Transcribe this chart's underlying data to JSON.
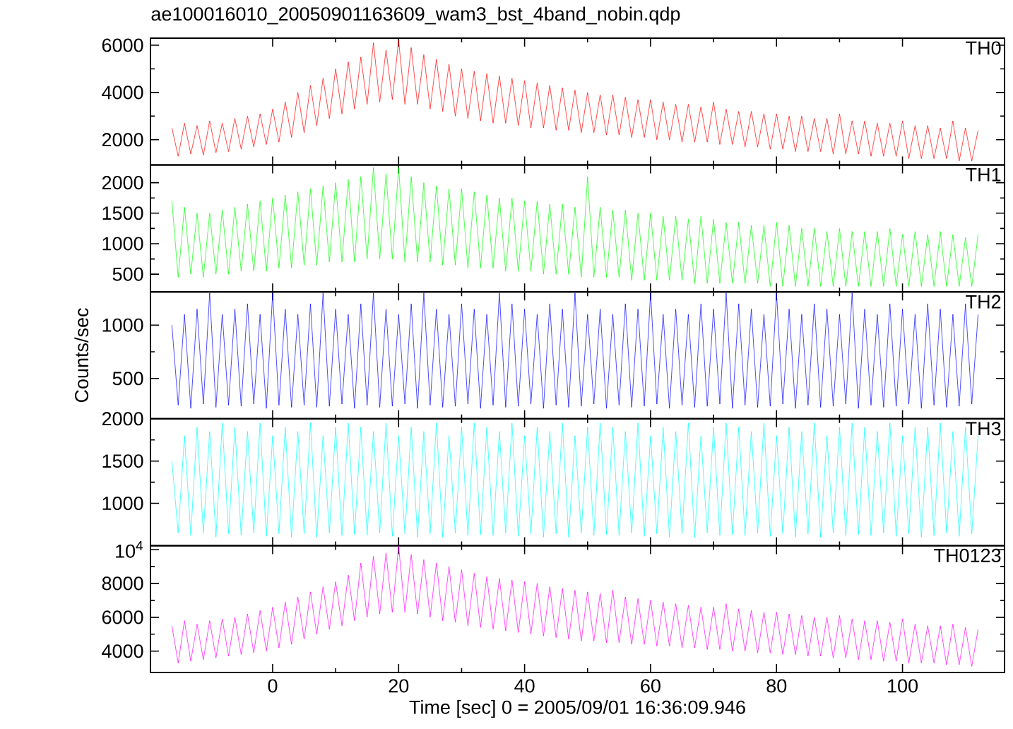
{
  "chart_data": [
    {
      "type": "line",
      "title": "ae100016010_20050901163609_wam3_bst_4band_nobin.qdp",
      "tick_labels": "y",
      "xlim": [
        -19.4,
        116.2
      ],
      "xticks": [
        0,
        20,
        40,
        60,
        80,
        100
      ],
      "ylim": [
        930,
        6300
      ],
      "yticks": [
        2000,
        4000,
        6000
      ],
      "x": [
        -16,
        -15,
        -14,
        -13,
        -12,
        -11,
        -10,
        -9,
        -8,
        -7,
        -6,
        -5,
        -4,
        -3,
        -2,
        -1,
        0,
        1,
        2,
        3,
        4,
        5,
        6,
        7,
        8,
        9,
        10,
        11,
        12,
        13,
        14,
        15,
        16,
        17,
        18,
        19,
        20,
        21,
        22,
        23,
        24,
        25,
        26,
        27,
        28,
        29,
        30,
        31,
        32,
        33,
        34,
        35,
        36,
        37,
        38,
        39,
        40,
        41,
        42,
        43,
        44,
        45,
        46,
        47,
        48,
        49,
        50,
        51,
        52,
        53,
        54,
        55,
        56,
        57,
        58,
        59,
        60,
        61,
        62,
        63,
        64,
        65,
        66,
        67,
        68,
        69,
        70,
        71,
        72,
        73,
        74,
        75,
        76,
        77,
        78,
        79,
        80,
        81,
        82,
        83,
        84,
        85,
        86,
        87,
        88,
        89,
        90,
        91,
        92,
        93,
        94,
        95,
        96,
        97,
        98,
        99,
        100,
        101,
        102,
        103,
        104,
        105,
        106,
        107,
        108,
        109,
        110,
        111,
        112
      ],
      "series": [
        {
          "name": "TH0",
          "color": "#ff0000",
          "values": [
            2500,
            1300,
            2700,
            1400,
            2600,
            1350,
            2800,
            1450,
            2700,
            1500,
            2900,
            1600,
            3000,
            1700,
            3100,
            1800,
            3300,
            1900,
            3600,
            2100,
            4000,
            2300,
            4300,
            2600,
            4600,
            2900,
            5000,
            3100,
            5300,
            3300,
            5500,
            3500,
            6100,
            3600,
            5800,
            3700,
            6200,
            3500,
            5900,
            3500,
            5600,
            3300,
            5400,
            3200,
            5200,
            3000,
            5000,
            2900,
            4900,
            2800,
            4800,
            2700,
            4700,
            2700,
            4600,
            2600,
            4500,
            2500,
            4400,
            2500,
            4300,
            2400,
            4200,
            2400,
            4100,
            2300,
            4000,
            2300,
            3900,
            2200,
            3900,
            2200,
            3800,
            2100,
            3700,
            2100,
            3700,
            2000,
            3600,
            2000,
            3500,
            1900,
            3500,
            1900,
            3400,
            1900,
            3600,
            1800,
            3300,
            1800,
            3200,
            1700,
            3200,
            1700,
            3100,
            1600,
            3100,
            1600,
            3000,
            1500,
            3000,
            1500,
            2900,
            1500,
            2900,
            1400,
            3100,
            1400,
            2800,
            1400,
            2800,
            1300,
            2700,
            1300,
            2700,
            1300,
            2800,
            1200,
            2600,
            1200,
            2600,
            1200,
            2500,
            1200,
            2800,
            1100,
            2500,
            1100,
            2400
          ]
        }
      ]
    },
    {
      "type": "line",
      "tick_labels": "y",
      "xlim": [
        -19.4,
        116.2
      ],
      "xticks": [
        0,
        20,
        40,
        60,
        80,
        100
      ],
      "ylim": [
        210,
        2290
      ],
      "yticks": [
        500,
        1000,
        1500,
        2000
      ],
      "x": [
        -16,
        -15,
        -14,
        -13,
        -12,
        -11,
        -10,
        -9,
        -8,
        -7,
        -6,
        -5,
        -4,
        -3,
        -2,
        -1,
        0,
        1,
        2,
        3,
        4,
        5,
        6,
        7,
        8,
        9,
        10,
        11,
        12,
        13,
        14,
        15,
        16,
        17,
        18,
        19,
        20,
        21,
        22,
        23,
        24,
        25,
        26,
        27,
        28,
        29,
        30,
        31,
        32,
        33,
        34,
        35,
        36,
        37,
        38,
        39,
        40,
        41,
        42,
        43,
        44,
        45,
        46,
        47,
        48,
        49,
        50,
        51,
        52,
        53,
        54,
        55,
        56,
        57,
        58,
        59,
        60,
        61,
        62,
        63,
        64,
        65,
        66,
        67,
        68,
        69,
        70,
        71,
        72,
        73,
        74,
        75,
        76,
        77,
        78,
        79,
        80,
        81,
        82,
        83,
        84,
        85,
        86,
        87,
        88,
        89,
        90,
        91,
        92,
        93,
        94,
        95,
        96,
        97,
        98,
        99,
        100,
        101,
        102,
        103,
        104,
        105,
        106,
        107,
        108,
        109,
        110,
        111,
        112
      ],
      "series": [
        {
          "name": "TH1",
          "color": "#00ff00",
          "values": [
            1700,
            450,
            1600,
            500,
            1500,
            450,
            1500,
            500,
            1550,
            500,
            1600,
            550,
            1650,
            550,
            1700,
            550,
            1750,
            600,
            1800,
            600,
            1850,
            650,
            1900,
            650,
            1950,
            700,
            2000,
            700,
            2050,
            700,
            2100,
            750,
            2250,
            750,
            2150,
            750,
            2250,
            700,
            2100,
            700,
            2000,
            700,
            1950,
            650,
            1900,
            650,
            1900,
            600,
            1850,
            600,
            1800,
            600,
            1750,
            550,
            1750,
            550,
            1700,
            550,
            1700,
            500,
            1650,
            500,
            1650,
            500,
            1600,
            450,
            2100,
            450,
            1600,
            450,
            1550,
            450,
            1550,
            400,
            1500,
            400,
            1500,
            400,
            1450,
            400,
            1450,
            400,
            1400,
            350,
            1450,
            350,
            1400,
            350,
            1350,
            350,
            1350,
            350,
            1300,
            350,
            1300,
            300,
            1350,
            300,
            1300,
            300,
            1250,
            300,
            1250,
            300,
            1200,
            300,
            1250,
            300,
            1200,
            300,
            1200,
            300,
            1200,
            300,
            1250,
            300,
            1150,
            300,
            1200,
            300,
            1150,
            300,
            1200,
            300,
            1150,
            300,
            1100,
            300,
            1150
          ]
        }
      ]
    },
    {
      "type": "line",
      "tick_labels": "y",
      "ylabel": "Counts/sec",
      "xlim": [
        -19.4,
        116.2
      ],
      "xticks": [
        0,
        20,
        40,
        60,
        80,
        100
      ],
      "ylim": [
        123,
        1311
      ],
      "yticks": [
        500,
        1000
      ],
      "x": [
        -16,
        -15,
        -14,
        -13,
        -12,
        -11,
        -10,
        -9,
        -8,
        -7,
        -6,
        -5,
        -4,
        -3,
        -2,
        -1,
        0,
        1,
        2,
        3,
        4,
        5,
        6,
        7,
        8,
        9,
        10,
        11,
        12,
        13,
        14,
        15,
        16,
        17,
        18,
        19,
        20,
        21,
        22,
        23,
        24,
        25,
        26,
        27,
        28,
        29,
        30,
        31,
        32,
        33,
        34,
        35,
        36,
        37,
        38,
        39,
        40,
        41,
        42,
        43,
        44,
        45,
        46,
        47,
        48,
        49,
        50,
        51,
        52,
        53,
        54,
        55,
        56,
        57,
        58,
        59,
        60,
        61,
        62,
        63,
        64,
        65,
        66,
        67,
        68,
        69,
        70,
        71,
        72,
        73,
        74,
        75,
        76,
        77,
        78,
        79,
        80,
        81,
        82,
        83,
        84,
        85,
        86,
        87,
        88,
        89,
        90,
        91,
        92,
        93,
        94,
        95,
        96,
        97,
        98,
        99,
        100,
        101,
        102,
        103,
        104,
        105,
        106,
        107,
        108,
        109,
        110,
        111,
        112
      ],
      "series": [
        {
          "name": "TH2",
          "color": "#0000ff",
          "values": [
            1000,
            250,
            1100,
            220,
            1150,
            260,
            1300,
            230,
            1100,
            250,
            1150,
            240,
            1200,
            260,
            1100,
            220,
            1300,
            250,
            1150,
            230,
            1100,
            250,
            1200,
            230,
            1300,
            240,
            1150,
            260,
            1100,
            220,
            1200,
            250,
            1300,
            230,
            1150,
            240,
            1100,
            260,
            1200,
            220,
            1300,
            250,
            1150,
            230,
            1100,
            240,
            1200,
            260,
            1150,
            220,
            1100,
            250,
            1300,
            230,
            1200,
            240,
            1150,
            260,
            1100,
            220,
            1200,
            250,
            1150,
            230,
            1300,
            240,
            1100,
            260,
            1150,
            220,
            1100,
            250,
            1200,
            230,
            1150,
            240,
            1300,
            260,
            1100,
            220,
            1150,
            250,
            1100,
            230,
            1200,
            240,
            1150,
            260,
            1300,
            220,
            1200,
            250,
            1150,
            230,
            1100,
            240,
            1300,
            260,
            1150,
            220,
            1100,
            250,
            1200,
            230,
            1150,
            240,
            1100,
            260,
            1300,
            220,
            1150,
            250,
            1100,
            230,
            1200,
            240,
            1150,
            260,
            1100,
            220,
            1200,
            250,
            1150,
            230,
            1100,
            240,
            1200,
            260,
            1100
          ]
        }
      ]
    },
    {
      "type": "line",
      "tick_labels": "y",
      "xlim": [
        -19.4,
        116.2
      ],
      "xticks": [
        0,
        20,
        40,
        60,
        80,
        100
      ],
      "ylim": [
        500,
        2000
      ],
      "yticks": [
        1000,
        1500,
        2000
      ],
      "x": [
        -16,
        -15,
        -14,
        -13,
        -12,
        -11,
        -10,
        -9,
        -8,
        -7,
        -6,
        -5,
        -4,
        -3,
        -2,
        -1,
        0,
        1,
        2,
        3,
        4,
        5,
        6,
        7,
        8,
        9,
        10,
        11,
        12,
        13,
        14,
        15,
        16,
        17,
        18,
        19,
        20,
        21,
        22,
        23,
        24,
        25,
        26,
        27,
        28,
        29,
        30,
        31,
        32,
        33,
        34,
        35,
        36,
        37,
        38,
        39,
        40,
        41,
        42,
        43,
        44,
        45,
        46,
        47,
        48,
        49,
        50,
        51,
        52,
        53,
        54,
        55,
        56,
        57,
        58,
        59,
        60,
        61,
        62,
        63,
        64,
        65,
        66,
        67,
        68,
        69,
        70,
        71,
        72,
        73,
        74,
        75,
        76,
        77,
        78,
        79,
        80,
        81,
        82,
        83,
        84,
        85,
        86,
        87,
        88,
        89,
        90,
        91,
        92,
        93,
        94,
        95,
        96,
        97,
        98,
        99,
        100,
        101,
        102,
        103,
        104,
        105,
        106,
        107,
        108,
        109,
        110,
        111,
        112
      ],
      "series": [
        {
          "name": "TH3",
          "color": "#00ffff",
          "values": [
            1500,
            650,
            1800,
            620,
            1900,
            650,
            1850,
            600,
            1950,
            640,
            1900,
            620,
            1850,
            650,
            1950,
            610,
            1800,
            640,
            1900,
            600,
            1850,
            640,
            1950,
            600,
            1800,
            650,
            1900,
            620,
            1950,
            630,
            1900,
            620,
            1850,
            650,
            1950,
            610,
            1800,
            640,
            1900,
            600,
            1850,
            640,
            1950,
            600,
            1800,
            650,
            1900,
            620,
            1950,
            630,
            1900,
            620,
            1850,
            650,
            1950,
            610,
            1800,
            640,
            1900,
            600,
            1850,
            640,
            1950,
            600,
            1800,
            650,
            1900,
            620,
            1950,
            630,
            1900,
            620,
            1850,
            650,
            1950,
            610,
            1800,
            640,
            1900,
            600,
            1850,
            640,
            1950,
            600,
            1800,
            650,
            1900,
            620,
            1950,
            630,
            1900,
            620,
            1850,
            650,
            1950,
            610,
            1800,
            640,
            1900,
            600,
            1850,
            640,
            1950,
            600,
            1800,
            650,
            1900,
            620,
            1950,
            630,
            1900,
            620,
            1850,
            650,
            1950,
            610,
            1800,
            640,
            1900,
            600,
            1900,
            620,
            1950,
            650,
            1850,
            610,
            1900,
            640,
            1800
          ]
        }
      ]
    },
    {
      "type": "line",
      "xlabel": "Time [sec] 0 = 2005/09/01 16:36:09.946",
      "xlim": [
        -19.4,
        116.2
      ],
      "xticks": [
        0,
        20,
        40,
        60,
        80,
        100
      ],
      "ylim": [
        2740,
        10230
      ],
      "yticks": [
        4000,
        6000,
        8000,
        {
          "value": 10000,
          "label": "10$^{4}$"
        }
      ],
      "x": [
        -16,
        -15,
        -14,
        -13,
        -12,
        -11,
        -10,
        -9,
        -8,
        -7,
        -6,
        -5,
        -4,
        -3,
        -2,
        -1,
        0,
        1,
        2,
        3,
        4,
        5,
        6,
        7,
        8,
        9,
        10,
        11,
        12,
        13,
        14,
        15,
        16,
        17,
        18,
        19,
        20,
        21,
        22,
        23,
        24,
        25,
        26,
        27,
        28,
        29,
        30,
        31,
        32,
        33,
        34,
        35,
        36,
        37,
        38,
        39,
        40,
        41,
        42,
        43,
        44,
        45,
        46,
        47,
        48,
        49,
        50,
        51,
        52,
        53,
        54,
        55,
        56,
        57,
        58,
        59,
        60,
        61,
        62,
        63,
        64,
        65,
        66,
        67,
        68,
        69,
        70,
        71,
        72,
        73,
        74,
        75,
        76,
        77,
        78,
        79,
        80,
        81,
        82,
        83,
        84,
        85,
        86,
        87,
        88,
        89,
        90,
        91,
        92,
        93,
        94,
        95,
        96,
        97,
        98,
        99,
        100,
        101,
        102,
        103,
        104,
        105,
        106,
        107,
        108,
        109,
        110,
        111,
        112
      ],
      "series": [
        {
          "name": "TH0123",
          "color": "#ff00ff",
          "values": [
            5500,
            3300,
            5800,
            3400,
            5600,
            3500,
            5800,
            3600,
            5900,
            3700,
            6000,
            3800,
            6200,
            3900,
            6400,
            4000,
            6600,
            4200,
            6900,
            4400,
            7200,
            4700,
            7500,
            5000,
            7800,
            5300,
            8100,
            5500,
            8500,
            5800,
            9200,
            6000,
            9600,
            6200,
            9800,
            6300,
            10200,
            6300,
            9700,
            6200,
            9400,
            6000,
            9200,
            5800,
            9000,
            5700,
            8800,
            5500,
            8600,
            5400,
            8400,
            5300,
            8300,
            5200,
            8200,
            5100,
            8100,
            5000,
            8000,
            4900,
            7800,
            4800,
            7700,
            4700,
            7600,
            4600,
            7500,
            4600,
            7400,
            4500,
            7600,
            4500,
            7200,
            4400,
            7100,
            4400,
            7000,
            4300,
            6900,
            4300,
            6800,
            4200,
            6700,
            4200,
            6600,
            4100,
            6600,
            4100,
            6800,
            4000,
            6500,
            4000,
            6400,
            3900,
            6300,
            3900,
            6300,
            3800,
            6200,
            3800,
            6100,
            3700,
            6000,
            3700,
            6000,
            3600,
            6100,
            3600,
            5900,
            3500,
            5800,
            3500,
            5800,
            3400,
            5700,
            3400,
            5900,
            3300,
            5600,
            3300,
            5500,
            3300,
            5500,
            3200,
            5600,
            3200,
            5400,
            3100,
            5300
          ]
        }
      ]
    }
  ]
}
